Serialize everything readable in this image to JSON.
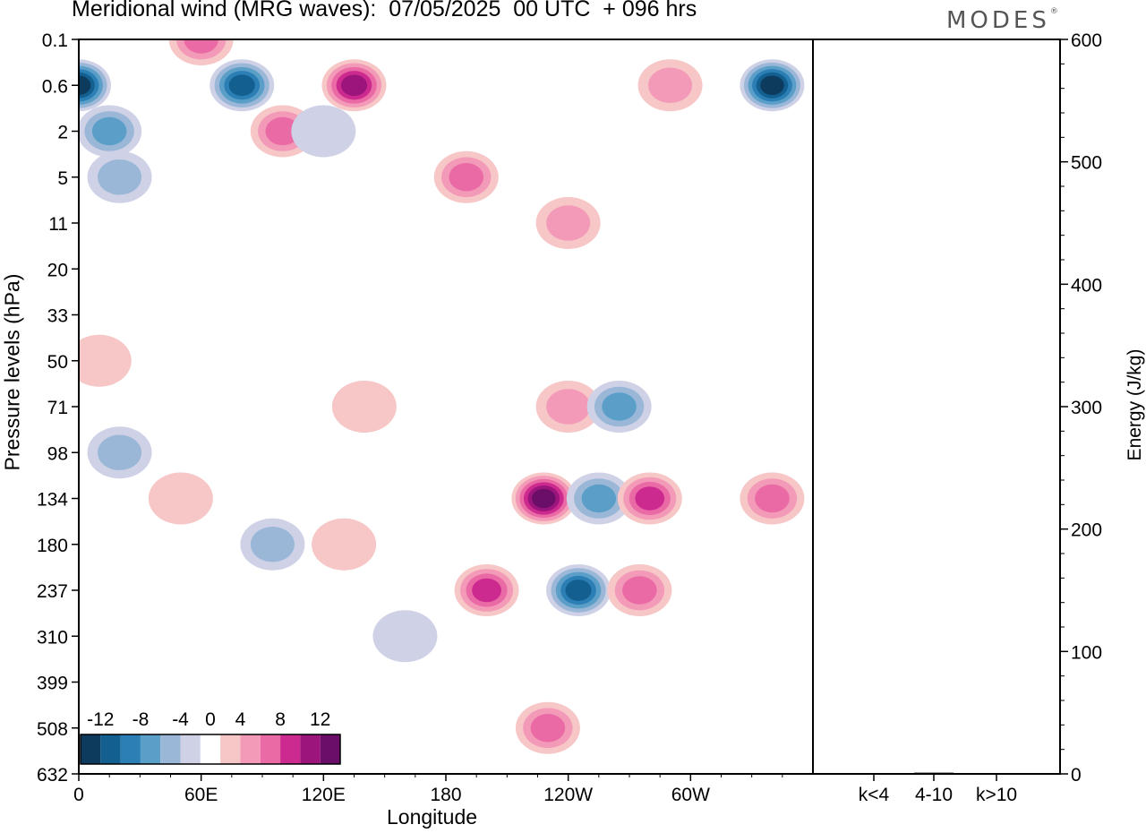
{
  "title": "Meridional wind (MRG waves):  07/05/2025  00 UTC  + 096 hrs",
  "brand": {
    "text": "MODES",
    "mark": "®"
  },
  "colors": {
    "blue_scale": [
      "#0d3b5e",
      "#135f8f",
      "#2b7fb5",
      "#5b9fc9",
      "#9ab7d8",
      "#cfd2e6"
    ],
    "pink_scale": [
      "#f7c6c6",
      "#f39ab8",
      "#ea6aa5",
      "#cc2a8f",
      "#9c157d",
      "#6b0e6a"
    ],
    "background": "#ffffff",
    "axis": "#000000"
  },
  "chart_data": [
    {
      "type": "heatmap",
      "title": "Meridional wind (MRG waves):  07/05/2025  00 UTC  + 096 hrs",
      "xlabel": "Longitude",
      "ylabel": "Pressure levels (hPa)",
      "x_ticks": [
        "0",
        "60E",
        "120E",
        "180",
        "120W",
        "60W"
      ],
      "y_ticks": [
        "0.1",
        "0.6",
        "2",
        "5",
        "11",
        "20",
        "33",
        "50",
        "71",
        "98",
        "134",
        "180",
        "237",
        "310",
        "399",
        "508",
        "632"
      ],
      "colorbar": {
        "labels": [
          "-12",
          "-8",
          "-4",
          "0",
          "4",
          "8",
          "12"
        ],
        "levels": [
          -12,
          -10,
          -8,
          -6,
          -4,
          -2,
          2,
          4,
          6,
          8,
          10,
          12
        ]
      },
      "features": [
        {
          "lon": 0,
          "level": "0.6",
          "value": -12
        },
        {
          "lon": 15,
          "level": "2",
          "value": -6
        },
        {
          "lon": 20,
          "level": "5",
          "value": -4
        },
        {
          "lon": 60,
          "level": "0.1",
          "value": 6
        },
        {
          "lon": 80,
          "level": "0.6",
          "value": -10
        },
        {
          "lon": 100,
          "level": "2",
          "value": 6
        },
        {
          "lon": 135,
          "level": "0.6",
          "value": 10
        },
        {
          "lon": 120,
          "level": "2",
          "value": -2
        },
        {
          "lon": 190,
          "level": "5",
          "value": 6
        },
        {
          "lon": 240,
          "level": "11",
          "value": 4
        },
        {
          "lon": 290,
          "level": "0.6",
          "value": 4
        },
        {
          "lon": 340,
          "level": "0.6",
          "value": -12
        },
        {
          "lon": 10,
          "level": "50",
          "value": 2
        },
        {
          "lon": 20,
          "level": "98",
          "value": -4
        },
        {
          "lon": 50,
          "level": "134",
          "value": 2
        },
        {
          "lon": 95,
          "level": "180",
          "value": -4
        },
        {
          "lon": 130,
          "level": "180",
          "value": 2
        },
        {
          "lon": 140,
          "level": "71",
          "value": 2
        },
        {
          "lon": 160,
          "level": "310",
          "value": -2
        },
        {
          "lon": 200,
          "level": "237",
          "value": 8
        },
        {
          "lon": 228,
          "level": "134",
          "value": 12
        },
        {
          "lon": 240,
          "level": "71",
          "value": 4
        },
        {
          "lon": 245,
          "level": "237",
          "value": -10
        },
        {
          "lon": 255,
          "level": "134",
          "value": -6
        },
        {
          "lon": 265,
          "level": "71",
          "value": -6
        },
        {
          "lon": 280,
          "level": "134",
          "value": 8
        },
        {
          "lon": 275,
          "level": "237",
          "value": 6
        },
        {
          "lon": 230,
          "level": "508",
          "value": 6
        },
        {
          "lon": 340,
          "level": "134",
          "value": 6
        }
      ]
    },
    {
      "type": "bar",
      "ylabel": "Energy (J/kg)",
      "categories": [
        "k<4",
        "4-10",
        "k>10"
      ],
      "values": [
        0,
        1,
        0
      ],
      "ylim": [
        0,
        600
      ],
      "y_ticks": [
        0,
        100,
        200,
        300,
        400,
        500,
        600
      ]
    }
  ]
}
